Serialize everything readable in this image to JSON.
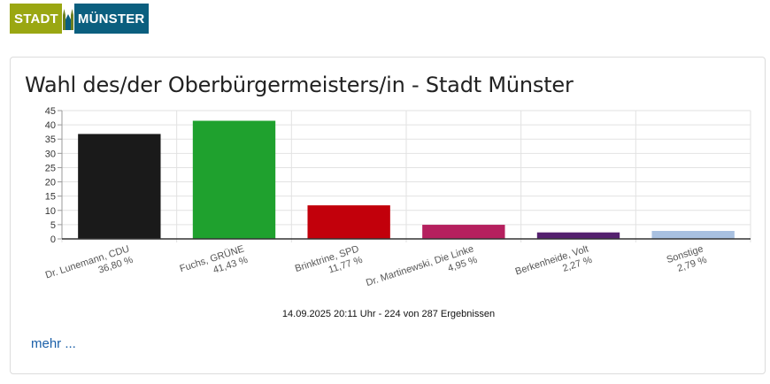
{
  "logo": {
    "left_text": "STADT",
    "right_text": "MÜNSTER"
  },
  "card": {
    "title": "Wahl des/der Oberbürgermeisters/in - Stadt Münster",
    "footnote": "14.09.2025 20:11 Uhr - 224 von 287 Ergebnissen",
    "more_link": "mehr ..."
  },
  "chart_data": {
    "type": "bar",
    "title": "Wahl des/der Oberbürgermeisters/in - Stadt Münster",
    "categories": [
      "Dr. Lunemann, CDU",
      "Fuchs, GRÜNE",
      "Brinktrine, SPD",
      "Dr. Martinewski, Die Linke",
      "Berkenheide, Volt",
      "Sonstige"
    ],
    "value_labels": [
      "36,80 %",
      "41,43 %",
      "11,77 %",
      "4,95 %",
      "2,27 %",
      "2,79 %"
    ],
    "values": [
      36.8,
      41.43,
      11.77,
      4.95,
      2.27,
      2.79
    ],
    "colors": [
      "#1a1a1a",
      "#1fa12e",
      "#c2000b",
      "#b5205e",
      "#54206e",
      "#a8c0e0"
    ],
    "ylim": [
      0,
      45
    ],
    "yticks": [
      0,
      5,
      10,
      15,
      20,
      25,
      30,
      35,
      40,
      45
    ],
    "grid": true,
    "xlabel": "",
    "ylabel": ""
  }
}
